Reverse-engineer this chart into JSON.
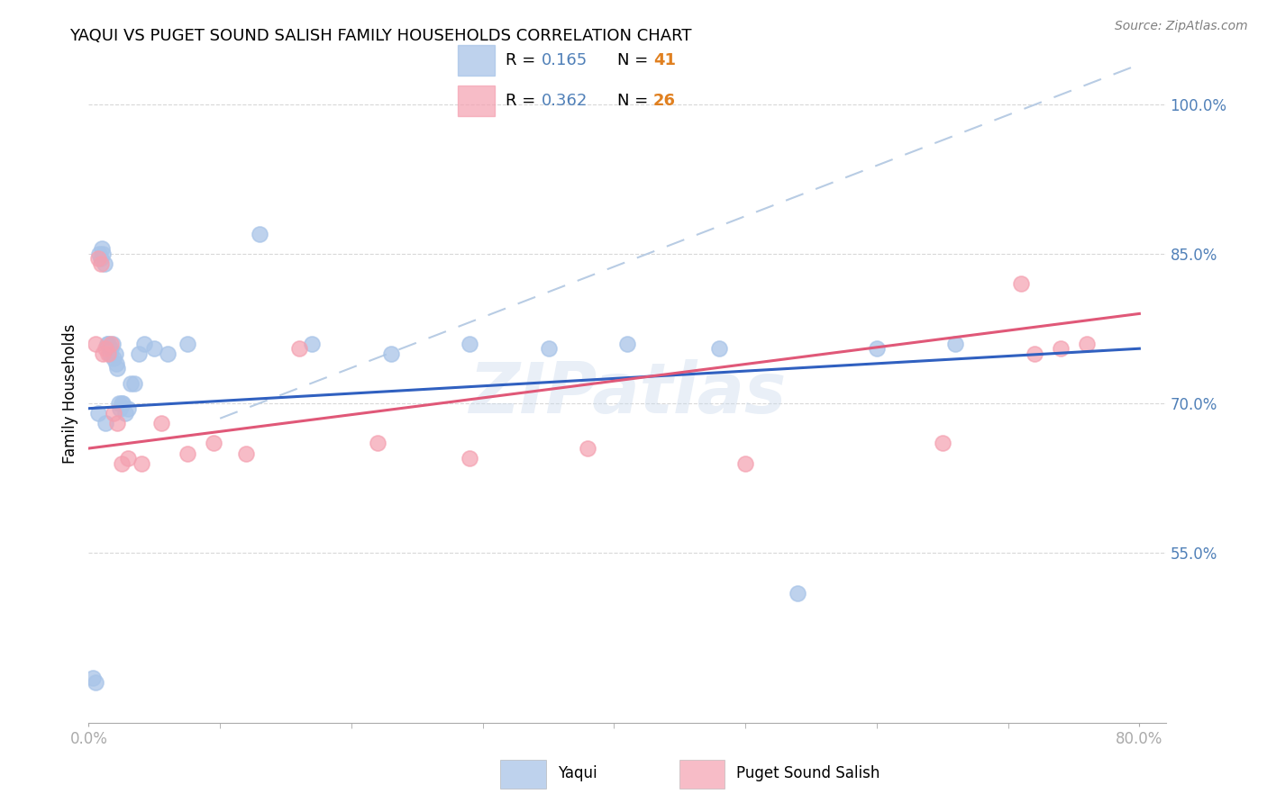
{
  "title": "YAQUI VS PUGET SOUND SALISH FAMILY HOUSEHOLDS CORRELATION CHART",
  "source": "Source: ZipAtlas.com",
  "ylabel_label": "Family Households",
  "xlim": [
    0.0,
    0.82
  ],
  "ylim": [
    0.38,
    1.04
  ],
  "yticks": [
    0.55,
    0.7,
    0.85,
    1.0
  ],
  "ytick_labels": [
    "55.0%",
    "70.0%",
    "85.0%",
    "100.0%"
  ],
  "legend_r1": "0.165",
  "legend_n1": "41",
  "legend_r2": "0.362",
  "legend_n2": "26",
  "blue_scatter_color": "#a8c4e8",
  "pink_scatter_color": "#f4a0b0",
  "blue_line_color": "#3060c0",
  "pink_line_color": "#e05878",
  "ref_line_color": "#b8cce4",
  "grid_color": "#d8d8d8",
  "axis_color": "#aaaaaa",
  "tick_color": "#5080b8",
  "n_color": "#e08020",
  "watermark": "ZIPatlas",
  "blue_x": [
    0.003,
    0.005,
    0.007,
    0.008,
    0.009,
    0.01,
    0.011,
    0.012,
    0.013,
    0.014,
    0.015,
    0.016,
    0.017,
    0.018,
    0.019,
    0.02,
    0.021,
    0.022,
    0.023,
    0.024,
    0.025,
    0.026,
    0.028,
    0.03,
    0.032,
    0.035,
    0.038,
    0.042,
    0.05,
    0.06,
    0.075,
    0.13,
    0.17,
    0.23,
    0.29,
    0.35,
    0.41,
    0.48,
    0.54,
    0.6,
    0.66
  ],
  "blue_y": [
    0.425,
    0.42,
    0.69,
    0.85,
    0.845,
    0.855,
    0.85,
    0.84,
    0.68,
    0.76,
    0.76,
    0.75,
    0.755,
    0.76,
    0.745,
    0.75,
    0.74,
    0.735,
    0.7,
    0.695,
    0.7,
    0.7,
    0.69,
    0.695,
    0.72,
    0.72,
    0.75,
    0.76,
    0.755,
    0.75,
    0.76,
    0.87,
    0.76,
    0.75,
    0.76,
    0.755,
    0.76,
    0.755,
    0.51,
    0.755,
    0.76
  ],
  "pink_x": [
    0.005,
    0.007,
    0.009,
    0.011,
    0.013,
    0.015,
    0.017,
    0.019,
    0.022,
    0.025,
    0.03,
    0.04,
    0.055,
    0.075,
    0.095,
    0.12,
    0.16,
    0.22,
    0.29,
    0.38,
    0.5,
    0.65,
    0.71,
    0.72,
    0.74,
    0.76
  ],
  "pink_y": [
    0.76,
    0.845,
    0.84,
    0.75,
    0.755,
    0.75,
    0.76,
    0.69,
    0.68,
    0.64,
    0.645,
    0.64,
    0.68,
    0.65,
    0.66,
    0.65,
    0.755,
    0.66,
    0.645,
    0.655,
    0.64,
    0.66,
    0.82,
    0.75,
    0.755,
    0.76
  ]
}
